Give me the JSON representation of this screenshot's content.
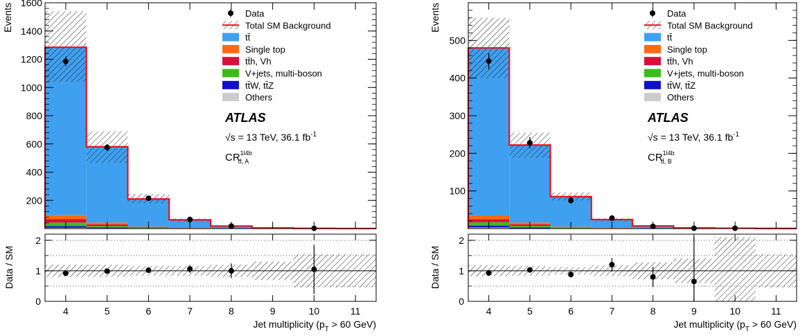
{
  "legend": [
    {
      "label": "Data",
      "kind": "data"
    },
    {
      "label": "Total SM Background",
      "kind": "total"
    },
    {
      "label": "tt̄",
      "kind": "fill",
      "color": "#3fa0f0"
    },
    {
      "label": "Single top",
      "kind": "fill",
      "color": "#ff6a10"
    },
    {
      "label": "tt̄h, Vh",
      "kind": "fill",
      "color": "#d8103c"
    },
    {
      "label": "V+jets, multi-boson",
      "kind": "fill",
      "color": "#3cbc1c"
    },
    {
      "label": "tt̄W, tt̄Z",
      "kind": "fill",
      "color": "#1010c8"
    },
    {
      "label": "Others",
      "kind": "fill",
      "color": "#cccccc"
    }
  ],
  "atlas_label": "ATLAS",
  "energy_label": "√s = 13 TeV, 36.1 fb",
  "energy_sup": "-1",
  "colors": {
    "total": "#e8101c",
    "ttbar": "#3fa0f0",
    "single_top": "#ff6a10",
    "tth": "#d8103c",
    "vjets": "#3cbc1c",
    "ttv": "#1010c8",
    "others": "#cccccc"
  },
  "chart_data": [
    {
      "type": "bar",
      "stacked": true,
      "region": "CR",
      "region_sup": "1l4b",
      "region_sub": "tt̄, A",
      "ylabel": "Events",
      "xlabel": "Jet multiplicity (p",
      "xlabel_sub": "T",
      "xlabel_tail": " > 60 GeV)",
      "xlim": [
        3.5,
        11.5
      ],
      "ylim": [
        0,
        1600
      ],
      "yticks": [
        200,
        400,
        600,
        800,
        1000,
        1200,
        1400,
        1600
      ],
      "ytick_labels": [
        "200",
        "400",
        "600",
        "800",
        "1000",
        "1200",
        "1400",
        "1600"
      ],
      "xticks": [
        "4",
        "5",
        "6",
        "7",
        "8",
        "9",
        "10",
        "11"
      ],
      "categories": [
        4,
        5,
        6,
        7,
        8,
        9,
        10,
        11
      ],
      "series": [
        {
          "name": "Others",
          "key": "others",
          "values": [
            6,
            3,
            1,
            0,
            0,
            0,
            0,
            0
          ]
        },
        {
          "name": "tt̄W, tt̄Z",
          "key": "ttv",
          "values": [
            12,
            5,
            2,
            1,
            0,
            0,
            0,
            0
          ]
        },
        {
          "name": "V+jets, multi-boson",
          "key": "vjets",
          "values": [
            25,
            10,
            3,
            1,
            0,
            0,
            0,
            0
          ]
        },
        {
          "name": "tt̄h, Vh",
          "key": "tth",
          "values": [
            25,
            12,
            4,
            1,
            0,
            0,
            0,
            0
          ]
        },
        {
          "name": "Single top",
          "key": "single_top",
          "values": [
            27,
            13,
            4,
            2,
            1,
            0,
            0,
            0
          ]
        },
        {
          "name": "tt̄",
          "key": "ttbar",
          "values": [
            1190,
            537,
            196,
            57,
            17,
            5,
            2,
            1
          ]
        }
      ],
      "total": [
        1285,
        580,
        210,
        62,
        18,
        5,
        2,
        1
      ],
      "band": [
        [
          1040,
          1540
        ],
        [
          465,
          690
        ],
        [
          180,
          245
        ],
        [
          52,
          72
        ],
        [
          14,
          22
        ],
        [
          3,
          7
        ],
        [
          1,
          3
        ],
        [
          0.5,
          1.5
        ]
      ],
      "data": [
        {
          "x": 4,
          "y": 1185,
          "err": 34
        },
        {
          "x": 5,
          "y": 575,
          "err": 24
        },
        {
          "x": 6,
          "y": 215,
          "err": 15
        },
        {
          "x": 7,
          "y": 65,
          "err": 8
        },
        {
          "x": 8,
          "y": 18,
          "err": 4
        },
        {
          "x": 10,
          "y": 2,
          "err": 1.4
        }
      ],
      "ratio": {
        "ylabel": "Data / SM",
        "ylim": [
          0,
          2.2
        ],
        "yticks": [
          "0",
          "1",
          "2"
        ],
        "points": [
          {
            "x": 4,
            "y": 0.92,
            "err": 0.03
          },
          {
            "x": 5,
            "y": 0.99,
            "err": 0.04
          },
          {
            "x": 6,
            "y": 1.02,
            "err": 0.07
          },
          {
            "x": 7,
            "y": 1.06,
            "err": 0.13
          },
          {
            "x": 8,
            "y": 1.0,
            "err": 0.24
          },
          {
            "x": 10,
            "y": 1.05,
            "err": 0.8
          }
        ],
        "band": [
          [
            0.8,
            1.2
          ],
          [
            0.8,
            1.2
          ],
          [
            0.84,
            1.16
          ],
          [
            0.84,
            1.16
          ],
          [
            0.8,
            1.2
          ],
          [
            0.7,
            1.3
          ],
          [
            0.45,
            1.55
          ],
          [
            0.45,
            1.55
          ]
        ]
      }
    },
    {
      "type": "bar",
      "stacked": true,
      "region": "CR",
      "region_sup": "1l4b",
      "region_sub": "tt̄, B",
      "ylabel": "Events",
      "xlabel": "Jet multiplicity (p",
      "xlabel_sub": "T",
      "xlabel_tail": " > 60 GeV)",
      "xlim": [
        3.5,
        11.5
      ],
      "ylim": [
        0,
        600
      ],
      "yticks": [
        100,
        200,
        300,
        400,
        500
      ],
      "ytick_labels": [
        "100",
        "200",
        "300",
        "400",
        "500"
      ],
      "xticks": [
        "4",
        "5",
        "6",
        "7",
        "8",
        "9",
        "10",
        "11"
      ],
      "categories": [
        4,
        5,
        6,
        7,
        8,
        9,
        10,
        11
      ],
      "series": [
        {
          "name": "Others",
          "key": "others",
          "values": [
            3,
            1,
            0,
            0,
            0,
            0,
            0,
            0
          ]
        },
        {
          "name": "tt̄W, tt̄Z",
          "key": "ttv",
          "values": [
            5,
            2,
            1,
            0,
            0,
            0,
            0,
            0
          ]
        },
        {
          "name": "V+jets, multi-boson",
          "key": "vjets",
          "values": [
            9,
            4,
            1,
            0,
            0,
            0,
            0,
            0
          ]
        },
        {
          "name": "tt̄h, Vh",
          "key": "tth",
          "values": [
            8,
            4,
            1,
            1,
            0,
            0,
            0,
            0
          ]
        },
        {
          "name": "Single top",
          "key": "single_top",
          "values": [
            10,
            5,
            2,
            1,
            0,
            0,
            0,
            0
          ]
        },
        {
          "name": "tt̄",
          "key": "ttbar",
          "values": [
            445,
            206,
            80,
            22,
            7,
            2,
            1,
            0.5
          ]
        }
      ],
      "total": [
        480,
        222,
        85,
        24,
        7,
        2,
        1,
        0.5
      ],
      "band": [
        [
          400,
          560
        ],
        [
          188,
          255
        ],
        [
          75,
          96
        ],
        [
          19,
          28
        ],
        [
          5,
          9
        ],
        [
          1,
          3
        ],
        [
          0.2,
          1.8
        ],
        [
          0.2,
          0.8
        ]
      ],
      "data": [
        {
          "x": 4,
          "y": 445,
          "err": 21
        },
        {
          "x": 5,
          "y": 228,
          "err": 15
        },
        {
          "x": 6,
          "y": 75,
          "err": 9
        },
        {
          "x": 7,
          "y": 28,
          "err": 5
        },
        {
          "x": 8,
          "y": 6,
          "err": 2.5
        },
        {
          "x": 9,
          "y": 1,
          "err": 1
        },
        {
          "x": 10,
          "y": 1,
          "err": 1
        }
      ],
      "ratio": {
        "ylabel": "Data / SM",
        "ylim": [
          0,
          2.2
        ],
        "yticks": [
          "0",
          "1",
          "2"
        ],
        "points": [
          {
            "x": 4,
            "y": 0.93,
            "err": 0.05
          },
          {
            "x": 5,
            "y": 1.03,
            "err": 0.07
          },
          {
            "x": 6,
            "y": 0.88,
            "err": 0.1
          },
          {
            "x": 7,
            "y": 1.2,
            "err": 0.22
          },
          {
            "x": 8,
            "y": 0.8,
            "err": 0.33
          },
          {
            "x": 9,
            "y": 0.65,
            "err": 1.45
          }
        ],
        "band": [
          [
            0.82,
            1.18
          ],
          [
            0.84,
            1.16
          ],
          [
            0.88,
            1.12
          ],
          [
            0.82,
            1.18
          ],
          [
            0.72,
            1.28
          ],
          [
            0.6,
            1.4
          ],
          [
            0,
            2.1
          ],
          [
            0.45,
            1.55
          ]
        ]
      }
    }
  ]
}
